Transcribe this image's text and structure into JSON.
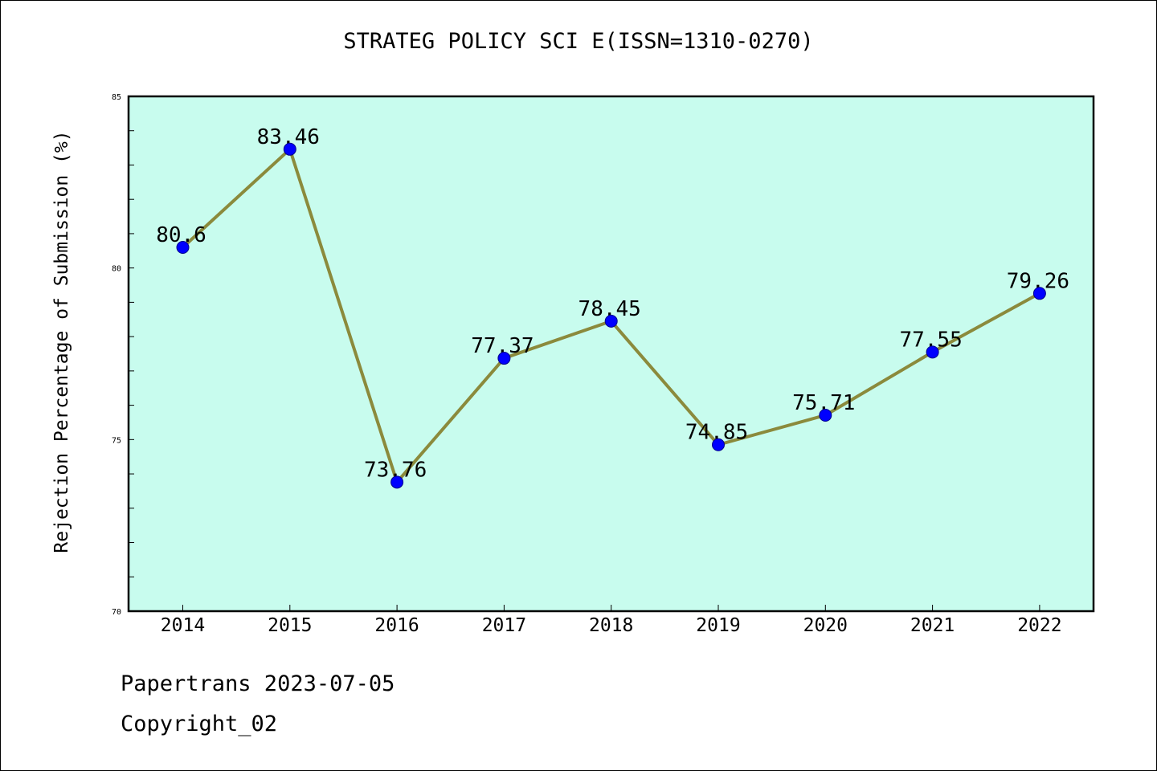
{
  "chart_data": {
    "type": "line",
    "title": "STRATEG POLICY SCI E(ISSN=1310-0270)",
    "xlabel": "",
    "ylabel": "Rejection Percentage of Submission (%)",
    "categories": [
      "2014",
      "2015",
      "2016",
      "2017",
      "2018",
      "2019",
      "2020",
      "2021",
      "2022"
    ],
    "values": [
      80.6,
      83.46,
      73.76,
      77.37,
      78.45,
      74.85,
      75.71,
      77.55,
      79.26
    ],
    "data_labels": [
      "80.6",
      "83.46",
      "73.76",
      "77.37",
      "78.45",
      "74.85",
      "75.71",
      "77.55",
      "79.26"
    ],
    "ylim": [
      70,
      85
    ],
    "yticks": [
      "70",
      "75",
      "80",
      "85"
    ],
    "grid": false,
    "colors": {
      "plot_background": "#c8fcee",
      "line": "#8b8a3c",
      "marker": "#0000ff"
    }
  },
  "footer": {
    "line1": "Papertrans 2023-07-05",
    "line2": "Copyright_02"
  }
}
